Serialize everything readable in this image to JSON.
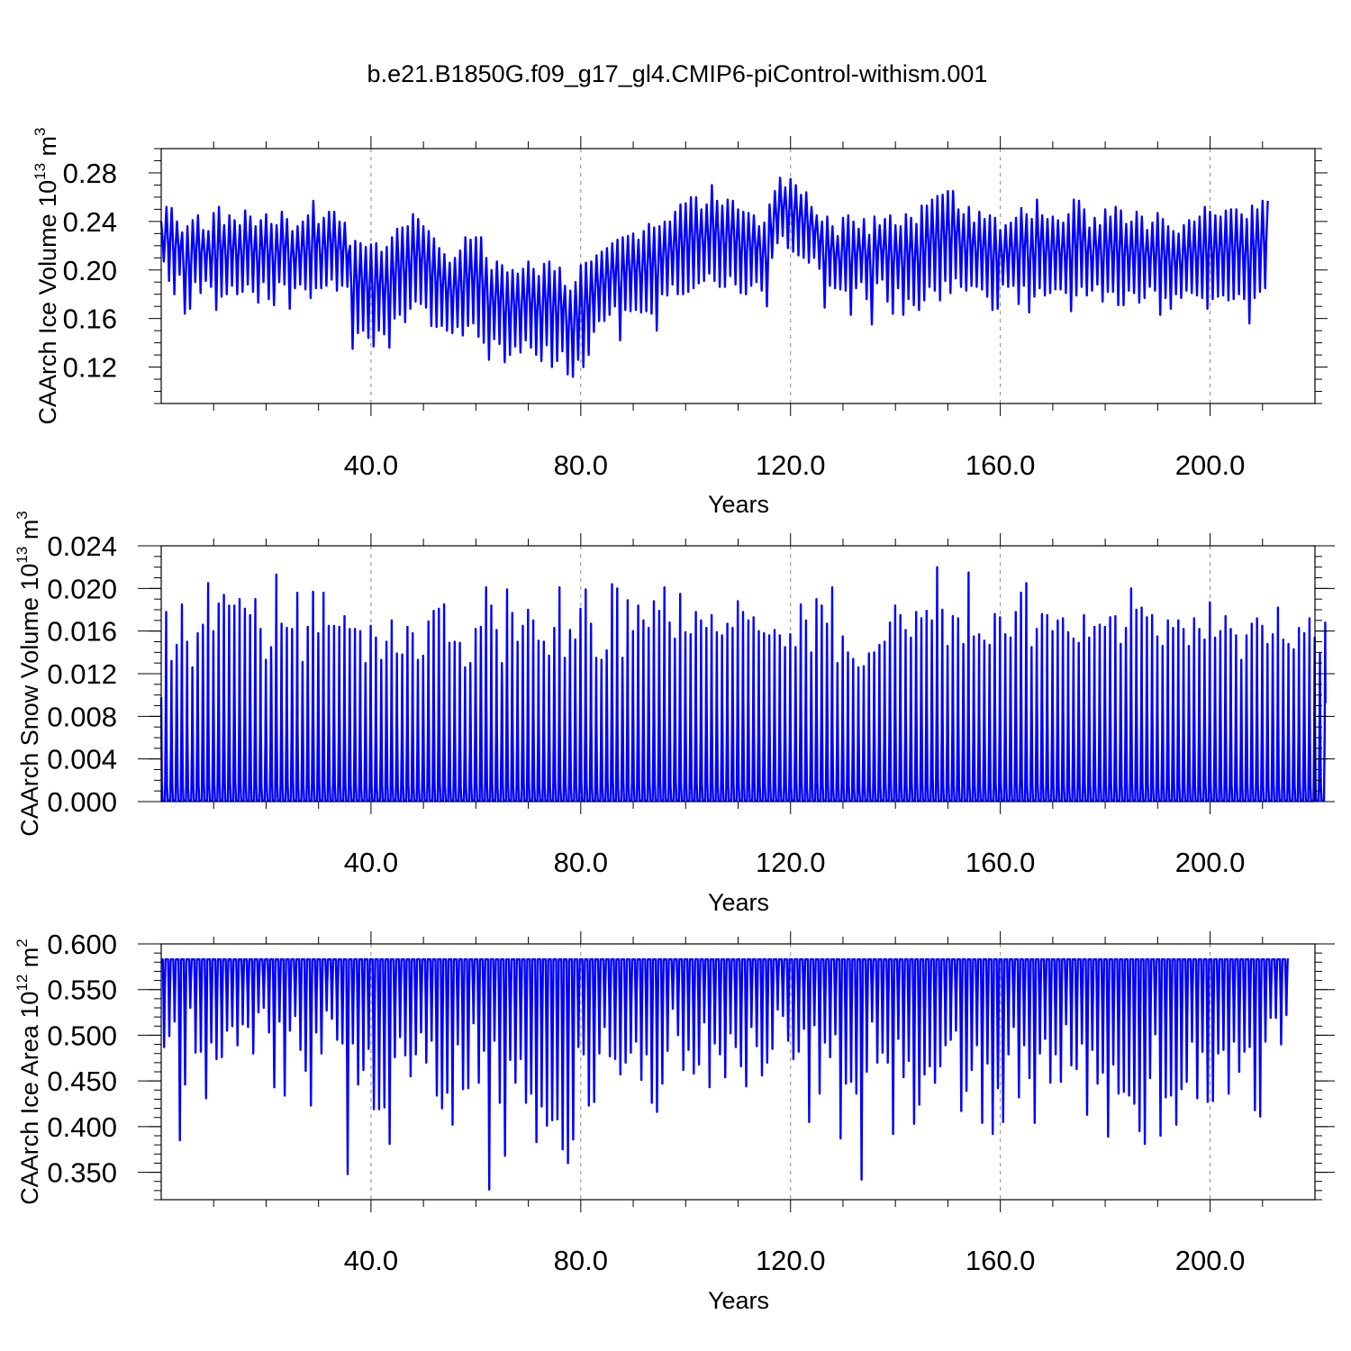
{
  "title": "b.e21.B1850G.f09_g17_gl4.CMIP6-piControl-withism.001",
  "chart_data": [
    {
      "type": "line",
      "xlabel": "Years",
      "ylabel": {
        "prefix": "CAArch Ice Volume 10",
        "exp": "13",
        "unit": " m",
        "unit_exp": "3"
      },
      "xlim": [
        0,
        220
      ],
      "ylim": [
        0.09,
        0.3
      ],
      "xticks": [
        40,
        80,
        120,
        160,
        200
      ],
      "xtick_labels": [
        "40.0",
        "80.0",
        "120.0",
        "160.0",
        "200.0"
      ],
      "yticks": [
        0.12,
        0.16,
        0.2,
        0.24,
        0.28
      ],
      "ytick_labels": [
        "0.12",
        "0.16",
        "0.20",
        "0.24",
        "0.28"
      ],
      "grid": "dashed vertical at labeled x ticks",
      "color": "#0000ff",
      "series": [
        {
          "annual_max": [
            0.24,
            0.252,
            0.251,
            0.24,
            0.231,
            0.236,
            0.241,
            0.245,
            0.233,
            0.232,
            0.247,
            0.252,
            0.237,
            0.245,
            0.241,
            0.237,
            0.249,
            0.244,
            0.236,
            0.241,
            0.246,
            0.238,
            0.237,
            0.248,
            0.242,
            0.232,
            0.236,
            0.24,
            0.245,
            0.257,
            0.238,
            0.243,
            0.248,
            0.248,
            0.24,
            0.239,
            0.22,
            0.224,
            0.222,
            0.219,
            0.221,
            0.222,
            0.215,
            0.219,
            0.227,
            0.234,
            0.235,
            0.236,
            0.246,
            0.242,
            0.236,
            0.232,
            0.226,
            0.218,
            0.213,
            0.206,
            0.21,
            0.216,
            0.227,
            0.225,
            0.227,
            0.227,
            0.21,
            0.2,
            0.207,
            0.204,
            0.198,
            0.2,
            0.197,
            0.201,
            0.207,
            0.201,
            0.195,
            0.205,
            0.207,
            0.199,
            0.202,
            0.187,
            0.183,
            0.19,
            0.204,
            0.206,
            0.207,
            0.212,
            0.215,
            0.218,
            0.222,
            0.225,
            0.227,
            0.228,
            0.23,
            0.225,
            0.232,
            0.238,
            0.235,
            0.236,
            0.24,
            0.24,
            0.248,
            0.254,
            0.255,
            0.26,
            0.26,
            0.25,
            0.254,
            0.27,
            0.257,
            0.253,
            0.258,
            0.257,
            0.25,
            0.248,
            0.247,
            0.245,
            0.236,
            0.239,
            0.254,
            0.265,
            0.276,
            0.268,
            0.275,
            0.27,
            0.262,
            0.264,
            0.252,
            0.245,
            0.24,
            0.244,
            0.236,
            0.228,
            0.243,
            0.245,
            0.24,
            0.234,
            0.242,
            0.229,
            0.244,
            0.237,
            0.242,
            0.245,
            0.237,
            0.236,
            0.246,
            0.243,
            0.238,
            0.253,
            0.253,
            0.258,
            0.261,
            0.262,
            0.265,
            0.265,
            0.25,
            0.246,
            0.252,
            0.239,
            0.248,
            0.242,
            0.245,
            0.243,
            0.233,
            0.237,
            0.239,
            0.243,
            0.251,
            0.246,
            0.242,
            0.258,
            0.245,
            0.242,
            0.244,
            0.241,
            0.239,
            0.246,
            0.258,
            0.257,
            0.25,
            0.235,
            0.243,
            0.237,
            0.25,
            0.244,
            0.252,
            0.249,
            0.238,
            0.24,
            0.248,
            0.244,
            0.233,
            0.239,
            0.247,
            0.242,
            0.236,
            0.232,
            0.23,
            0.237,
            0.241,
            0.24,
            0.244,
            0.252,
            0.248,
            0.245,
            0.244,
            0.249,
            0.25,
            0.25,
            0.246,
            0.242,
            0.253,
            0.25,
            0.257
          ],
          "annual_min": [
            0.207,
            0.191,
            0.18,
            0.196,
            0.164,
            0.168,
            0.19,
            0.181,
            0.191,
            0.186,
            0.167,
            0.178,
            0.18,
            0.187,
            0.18,
            0.182,
            0.188,
            0.182,
            0.173,
            0.19,
            0.176,
            0.171,
            0.19,
            0.188,
            0.168,
            0.185,
            0.188,
            0.184,
            0.177,
            0.185,
            0.185,
            0.187,
            0.192,
            0.183,
            0.187,
            0.186,
            0.135,
            0.148,
            0.15,
            0.144,
            0.137,
            0.15,
            0.147,
            0.136,
            0.16,
            0.163,
            0.157,
            0.168,
            0.174,
            0.172,
            0.169,
            0.154,
            0.153,
            0.154,
            0.15,
            0.148,
            0.153,
            0.146,
            0.154,
            0.156,
            0.145,
            0.14,
            0.126,
            0.143,
            0.139,
            0.124,
            0.13,
            0.137,
            0.132,
            0.142,
            0.136,
            0.13,
            0.125,
            0.138,
            0.12,
            0.125,
            0.133,
            0.114,
            0.112,
            0.126,
            0.12,
            0.13,
            0.149,
            0.158,
            0.158,
            0.163,
            0.17,
            0.142,
            0.167,
            0.166,
            0.167,
            0.165,
            0.166,
            0.164,
            0.15,
            0.18,
            0.179,
            0.188,
            0.18,
            0.18,
            0.182,
            0.185,
            0.189,
            0.191,
            0.197,
            0.191,
            0.186,
            0.186,
            0.195,
            0.188,
            0.181,
            0.18,
            0.187,
            0.19,
            0.183,
            0.17,
            0.21,
            0.222,
            0.228,
            0.218,
            0.215,
            0.212,
            0.21,
            0.206,
            0.21,
            0.201,
            0.169,
            0.187,
            0.185,
            0.184,
            0.183,
            0.163,
            0.185,
            0.19,
            0.176,
            0.155,
            0.189,
            0.192,
            0.174,
            0.164,
            0.185,
            0.163,
            0.176,
            0.171,
            0.167,
            0.175,
            0.186,
            0.183,
            0.175,
            0.191,
            0.181,
            0.193,
            0.186,
            0.183,
            0.187,
            0.186,
            0.184,
            0.178,
            0.167,
            0.168,
            0.188,
            0.186,
            0.187,
            0.172,
            0.187,
            0.165,
            0.178,
            0.185,
            0.179,
            0.181,
            0.184,
            0.184,
            0.181,
            0.166,
            0.179,
            0.186,
            0.179,
            0.183,
            0.188,
            0.174,
            0.182,
            0.182,
            0.171,
            0.171,
            0.183,
            0.181,
            0.173,
            0.177,
            0.186,
            0.183,
            0.163,
            0.177,
            0.168,
            0.18,
            0.177,
            0.183,
            0.181,
            0.179,
            0.177,
            0.168,
            0.176,
            0.178,
            0.179,
            0.175,
            0.176,
            0.18,
            0.176,
            0.156,
            0.177,
            0.182,
            0.185,
            0.199
          ]
        }
      ]
    },
    {
      "type": "line",
      "xlabel": "Years",
      "ylabel": {
        "prefix": "CAArch Snow Volume 10",
        "exp": "13",
        "unit": " m",
        "unit_exp": "3"
      },
      "xlim": [
        0,
        220
      ],
      "ylim": [
        0,
        0.024
      ],
      "xticks": [
        40,
        80,
        120,
        160,
        200
      ],
      "xtick_labels": [
        "40.0",
        "80.0",
        "120.0",
        "160.0",
        "200.0"
      ],
      "yticks": [
        0.0,
        0.004,
        0.008,
        0.012,
        0.016,
        0.02,
        0.024
      ],
      "ytick_labels": [
        "0.000",
        "0.004",
        "0.008",
        "0.012",
        "0.016",
        "0.020",
        "0.024"
      ],
      "grid": "dashed vertical at labeled x ticks",
      "color": "#0000ff",
      "series": [
        {
          "annual_max": [
            0.0178,
            0.0132,
            0.0147,
            0.0185,
            0.015,
            0.0126,
            0.0158,
            0.0166,
            0.0205,
            0.016,
            0.0186,
            0.0194,
            0.0184,
            0.0184,
            0.019,
            0.0181,
            0.0175,
            0.019,
            0.0162,
            0.0133,
            0.0145,
            0.0213,
            0.0167,
            0.0163,
            0.0162,
            0.0196,
            0.0131,
            0.0164,
            0.0197,
            0.0158,
            0.0196,
            0.0165,
            0.0165,
            0.0164,
            0.0174,
            0.0162,
            0.0162,
            0.016,
            0.013,
            0.0165,
            0.0154,
            0.0133,
            0.015,
            0.017,
            0.0139,
            0.0138,
            0.0164,
            0.0158,
            0.0133,
            0.0137,
            0.0169,
            0.0179,
            0.0181,
            0.0185,
            0.0149,
            0.015,
            0.0149,
            0.0126,
            0.013,
            0.0162,
            0.0164,
            0.0201,
            0.0184,
            0.0161,
            0.013,
            0.0199,
            0.0177,
            0.015,
            0.0165,
            0.018,
            0.017,
            0.0151,
            0.015,
            0.0137,
            0.0163,
            0.0201,
            0.0135,
            0.0161,
            0.0152,
            0.0181,
            0.0199,
            0.0167,
            0.0135,
            0.0133,
            0.0142,
            0.0204,
            0.02,
            0.0135,
            0.0189,
            0.016,
            0.0184,
            0.017,
            0.0163,
            0.0188,
            0.0179,
            0.0201,
            0.0168,
            0.0153,
            0.0195,
            0.0159,
            0.0157,
            0.0178,
            0.017,
            0.0163,
            0.0175,
            0.0159,
            0.0156,
            0.0167,
            0.0163,
            0.0188,
            0.0178,
            0.017,
            0.0173,
            0.016,
            0.0158,
            0.0156,
            0.0161,
            0.0156,
            0.0145,
            0.0157,
            0.0145,
            0.0185,
            0.017,
            0.014,
            0.019,
            0.0184,
            0.0167,
            0.0201,
            0.013,
            0.0155,
            0.014,
            0.0134,
            0.0126,
            0.0127,
            0.0139,
            0.014,
            0.0147,
            0.015,
            0.0168,
            0.0184,
            0.0175,
            0.0161,
            0.0154,
            0.0178,
            0.0172,
            0.0179,
            0.017,
            0.022,
            0.018,
            0.0146,
            0.0174,
            0.0172,
            0.0148,
            0.0215,
            0.0155,
            0.0157,
            0.0151,
            0.0147,
            0.0176,
            0.0173,
            0.0157,
            0.0154,
            0.0178,
            0.0196,
            0.0205,
            0.0145,
            0.0162,
            0.0176,
            0.0175,
            0.016,
            0.017,
            0.0172,
            0.0159,
            0.0153,
            0.0149,
            0.0175,
            0.0154,
            0.0164,
            0.0166,
            0.0164,
            0.0173,
            0.0174,
            0.0148,
            0.0163,
            0.02,
            0.018,
            0.0182,
            0.0173,
            0.0175,
            0.0155,
            0.0146,
            0.017,
            0.0163,
            0.017,
            0.0162,
            0.0146,
            0.0172,
            0.0162,
            0.0152,
            0.0187,
            0.0154,
            0.016,
            0.0174,
            0.0162,
            0.0156,
            0.0133,
            0.0156,
            0.0167,
            0.0172,
            0.0165,
            0.0148,
            0.0157,
            0.0182,
            0.0152,
            0.0148,
            0.0143,
            0.0163,
            0.0158,
            0.0172,
            0.0154,
            0.0139,
            0.0168
          ]
        }
      ]
    },
    {
      "type": "line",
      "xlabel": "Years",
      "ylabel": {
        "prefix": "CAArch Ice Area 10",
        "exp": "12",
        "unit": " m",
        "unit_exp": "2"
      },
      "xlim": [
        0,
        220
      ],
      "ylim": [
        0.32,
        0.6
      ],
      "xticks": [
        40,
        80,
        120,
        160,
        200
      ],
      "xtick_labels": [
        "40.0",
        "80.0",
        "120.0",
        "160.0",
        "200.0"
      ],
      "yticks": [
        0.35,
        0.4,
        0.45,
        0.5,
        0.55,
        0.6
      ],
      "ytick_labels": [
        "0.350",
        "0.400",
        "0.450",
        "0.500",
        "0.550",
        "0.600"
      ],
      "grid": "dashed vertical at labeled x ticks",
      "color": "#0000ff",
      "series": [
        {
          "annual_max": 0.583,
          "annual_min": [
            0.487,
            0.499,
            0.515,
            0.385,
            0.446,
            0.53,
            0.481,
            0.482,
            0.431,
            0.492,
            0.474,
            0.476,
            0.505,
            0.51,
            0.489,
            0.512,
            0.509,
            0.48,
            0.525,
            0.53,
            0.503,
            0.443,
            0.515,
            0.434,
            0.505,
            0.521,
            0.484,
            0.461,
            0.423,
            0.503,
            0.48,
            0.527,
            0.518,
            0.495,
            0.491,
            0.348,
            0.491,
            0.446,
            0.462,
            0.485,
            0.419,
            0.419,
            0.421,
            0.381,
            0.476,
            0.498,
            0.478,
            0.455,
            0.479,
            0.503,
            0.47,
            0.494,
            0.434,
            0.42,
            0.437,
            0.402,
            0.49,
            0.441,
            0.442,
            0.513,
            0.448,
            0.483,
            0.331,
            0.494,
            0.426,
            0.368,
            0.473,
            0.448,
            0.474,
            0.426,
            0.436,
            0.383,
            0.422,
            0.401,
            0.407,
            0.408,
            0.375,
            0.36,
            0.386,
            0.487,
            0.479,
            0.423,
            0.427,
            0.48,
            0.509,
            0.477,
            0.474,
            0.457,
            0.47,
            0.481,
            0.493,
            0.451,
            0.479,
            0.426,
            0.416,
            0.447,
            0.483,
            0.529,
            0.5,
            0.462,
            0.484,
            0.458,
            0.468,
            0.514,
            0.443,
            0.491,
            0.479,
            0.454,
            0.502,
            0.487,
            0.466,
            0.444,
            0.509,
            0.488,
            0.456,
            0.47,
            0.485,
            0.528,
            0.521,
            0.494,
            0.474,
            0.482,
            0.507,
            0.405,
            0.511,
            0.436,
            0.492,
            0.476,
            0.501,
            0.387,
            0.447,
            0.449,
            0.436,
            0.342,
            0.46,
            0.515,
            0.47,
            0.481,
            0.47,
            0.392,
            0.496,
            0.454,
            0.472,
            0.403,
            0.424,
            0.457,
            0.466,
            0.448,
            0.466,
            0.489,
            0.495,
            0.505,
            0.417,
            0.439,
            0.462,
            0.489,
            0.404,
            0.469,
            0.392,
            0.442,
            0.405,
            0.479,
            0.509,
            0.432,
            0.489,
            0.453,
            0.404,
            0.48,
            0.496,
            0.448,
            0.479,
            0.449,
            0.512,
            0.467,
            0.463,
            0.491,
            0.413,
            0.484,
            0.447,
            0.459,
            0.389,
            0.468,
            0.436,
            0.438,
            0.434,
            0.425,
            0.395,
            0.381,
            0.453,
            0.501,
            0.39,
            0.432,
            0.434,
            0.402,
            0.441,
            0.449,
            0.493,
            0.431,
            0.482,
            0.427,
            0.428,
            0.48,
            0.484,
            0.436,
            0.493,
            0.46,
            0.482,
            0.487,
            0.418,
            0.411,
            0.493,
            0.519,
            0.519,
            0.49,
            0.522
          ]
        }
      ]
    }
  ]
}
